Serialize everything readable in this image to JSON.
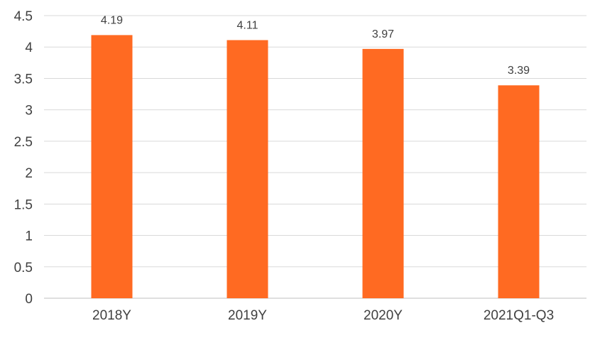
{
  "chart_data": {
    "type": "bar",
    "title": "",
    "xlabel": "",
    "ylabel": "",
    "categories": [
      "2018Y",
      "2019Y",
      "2020Y",
      "2021Q1-Q3"
    ],
    "values": [
      4.19,
      4.11,
      3.97,
      3.39
    ],
    "data_labels": [
      "4.19",
      "4.11",
      "3.97",
      "3.39"
    ],
    "ylim": [
      0,
      4.5
    ],
    "y_ticks": [
      0,
      0.5,
      1,
      1.5,
      2,
      2.5,
      3,
      3.5,
      4,
      4.5
    ],
    "y_tick_labels": [
      "0",
      "0.5",
      "1",
      "1.5",
      "2",
      "2.5",
      "3",
      "3.5",
      "4",
      "4.5"
    ],
    "grid": true,
    "legend": "none",
    "bar_color": "#FF6A22"
  }
}
